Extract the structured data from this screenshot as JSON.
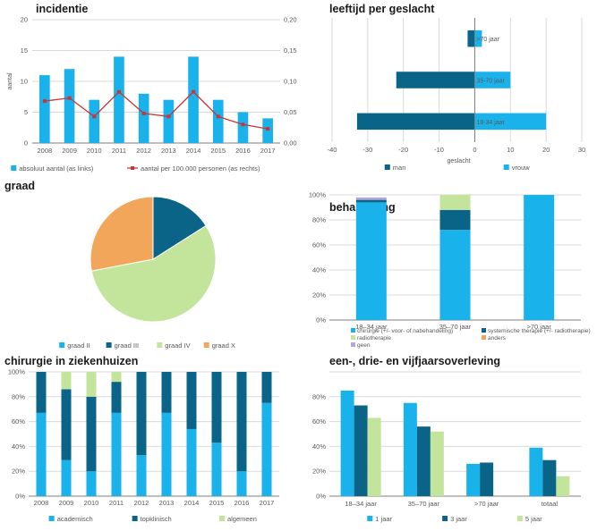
{
  "colors": {
    "light_blue": "#1ab2ea",
    "dark_teal": "#0a6487",
    "light_green": "#c3e59b",
    "orange": "#f2a65a",
    "red": "#cc3333",
    "lavender": "#b3a8d9",
    "axis": "#7f7f7f",
    "grid": "#d9d9d9",
    "text": "#595959"
  },
  "chart_data": [
    {
      "id": "incidentie",
      "type": "bar",
      "title": "incidentie",
      "categories": [
        "2008",
        "2009",
        "2010",
        "2011",
        "2012",
        "2013",
        "2014",
        "2015",
        "2016",
        "2017"
      ],
      "ylabel": "aantal",
      "ylim": [
        0,
        20
      ],
      "yticks": [
        "0",
        "5",
        "10",
        "15",
        "20"
      ],
      "y2lim": [
        0,
        0.2
      ],
      "y2ticks": [
        "0,00",
        "0,05",
        "0,10",
        "0,15",
        "0,20"
      ],
      "series": [
        {
          "name": "absoluut aantal (as links)",
          "type": "bar",
          "axis": "left",
          "values": [
            11,
            12,
            7,
            14,
            8,
            7,
            14,
            7,
            5,
            4
          ]
        },
        {
          "name": "aantal per 100.000 personen (as rechts)",
          "type": "line",
          "axis": "right",
          "values": [
            0.068,
            0.073,
            0.043,
            0.083,
            0.048,
            0.043,
            0.083,
            0.043,
            0.03,
            0.023
          ]
        }
      ],
      "legend": "bottom",
      "grid": true
    },
    {
      "id": "leeftijd",
      "type": "bar",
      "orientation": "horizontal",
      "title": "leeftijd per geslacht",
      "categories": [
        "18-34 jaar",
        "35-70 jaar",
        ">70 jaar"
      ],
      "xlabel": "geslacht",
      "xlim": [
        -40,
        30
      ],
      "xticks": [
        "-40",
        "-30",
        "-20",
        "-10",
        "0",
        "10",
        "20",
        "30"
      ],
      "series": [
        {
          "name": "man",
          "values": [
            -33,
            -22,
            -2
          ]
        },
        {
          "name": "vrouw",
          "values": [
            20,
            10,
            2
          ]
        }
      ],
      "legend": "bottom",
      "grid": true
    },
    {
      "id": "graad",
      "type": "pie",
      "title": "graad",
      "categories": [
        "graad II",
        "graad III",
        "graad IV",
        "graad X"
      ],
      "values": [
        0,
        16,
        56,
        28
      ],
      "legend": "bottom"
    },
    {
      "id": "behandeling",
      "type": "bar",
      "stacked": true,
      "title": "behandeling",
      "categories": [
        "18–34 jaar",
        "35–70 jaar",
        ">70 jaar"
      ],
      "ylim": [
        0,
        100
      ],
      "yticks": [
        "0%",
        "20%",
        "40%",
        "60%",
        "80%",
        "100%"
      ],
      "series": [
        {
          "name": "chirurgie (+/- voor- of nabehandeling)",
          "values": [
            94,
            72,
            100
          ]
        },
        {
          "name": "systemische therapie (+/- radiotherapie)",
          "values": [
            2,
            16,
            0
          ]
        },
        {
          "name": "radiotherapie",
          "values": [
            0,
            12,
            0
          ]
        },
        {
          "name": "anders",
          "values": [
            0,
            0,
            0
          ]
        },
        {
          "name": "geen",
          "values": [
            2,
            0,
            0
          ]
        }
      ],
      "legend": "bottom",
      "grid": true
    },
    {
      "id": "chirurgie",
      "type": "bar",
      "stacked": true,
      "title": "chirurgie in ziekenhuizen",
      "categories": [
        "2008",
        "2009",
        "2010",
        "2011",
        "2012",
        "2013",
        "2014",
        "2015",
        "2016",
        "2017"
      ],
      "ylim": [
        0,
        100
      ],
      "yticks": [
        "0%",
        "20%",
        "40%",
        "60%",
        "80%",
        "100%"
      ],
      "series": [
        {
          "name": "academisch",
          "values": [
            67,
            29,
            20,
            67,
            33,
            67,
            54,
            43,
            20,
            75
          ]
        },
        {
          "name": "topklinisch",
          "values": [
            33,
            57,
            60,
            25,
            67,
            33,
            46,
            57,
            80,
            25
          ]
        },
        {
          "name": "algemeen",
          "values": [
            0,
            14,
            20,
            8,
            0,
            0,
            0,
            0,
            0,
            0
          ]
        }
      ],
      "legend": "bottom",
      "grid": true
    },
    {
      "id": "overleving",
      "type": "bar",
      "title": "een-, drie- en vijfjaarsoverleving",
      "categories": [
        "18–34 jaar",
        "35–70 jaar",
        ">70 jaar",
        "totaal"
      ],
      "ylim": [
        0,
        100
      ],
      "yticks": [
        "0%",
        "20%",
        "40%",
        "60%",
        "80%"
      ],
      "series": [
        {
          "name": "1 jaar",
          "values": [
            85,
            75,
            26,
            39
          ]
        },
        {
          "name": "3 jaar",
          "values": [
            73,
            56,
            27,
            29
          ]
        },
        {
          "name": "5 jaar",
          "values": [
            63,
            52,
            0,
            16
          ]
        }
      ],
      "legend": "bottom",
      "grid": true
    }
  ]
}
